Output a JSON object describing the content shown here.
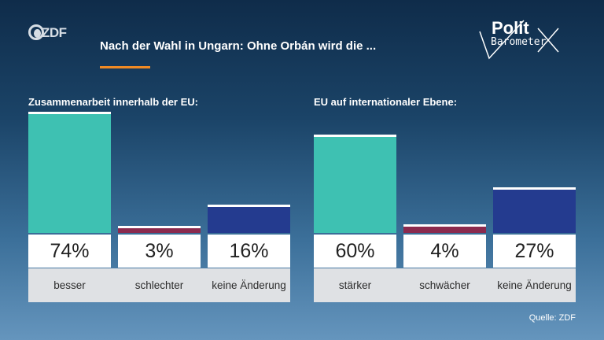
{
  "brand": {
    "logo_text": "ZDF",
    "show_logo": "Polit",
    "show_logo_sub": "Barometer"
  },
  "title": "Nach der Wahl in Ungarn: Ohne Orbán wird die ...",
  "colors": {
    "positive": "#3ec1b2",
    "negative": "#8b2a4e",
    "neutral": "#243b8f",
    "accent": "#f08a24"
  },
  "source": "Quelle: ZDF",
  "chart_data": [
    {
      "type": "bar",
      "title": "Zusammenarbeit innerhalb der EU:",
      "categories": [
        "besser",
        "schlechter",
        "keine Änderung"
      ],
      "values": [
        74,
        3,
        16
      ],
      "value_labels": [
        "74%",
        "3%",
        "16%"
      ],
      "ylim": [
        0,
        74
      ],
      "unit": "%"
    },
    {
      "type": "bar",
      "title": "EU auf internationaler Ebene:",
      "categories": [
        "stärker",
        "schwächer",
        "keine Änderung"
      ],
      "values": [
        60,
        4,
        27
      ],
      "value_labels": [
        "60%",
        "4%",
        "27%"
      ],
      "ylim": [
        0,
        74
      ],
      "unit": "%"
    }
  ]
}
